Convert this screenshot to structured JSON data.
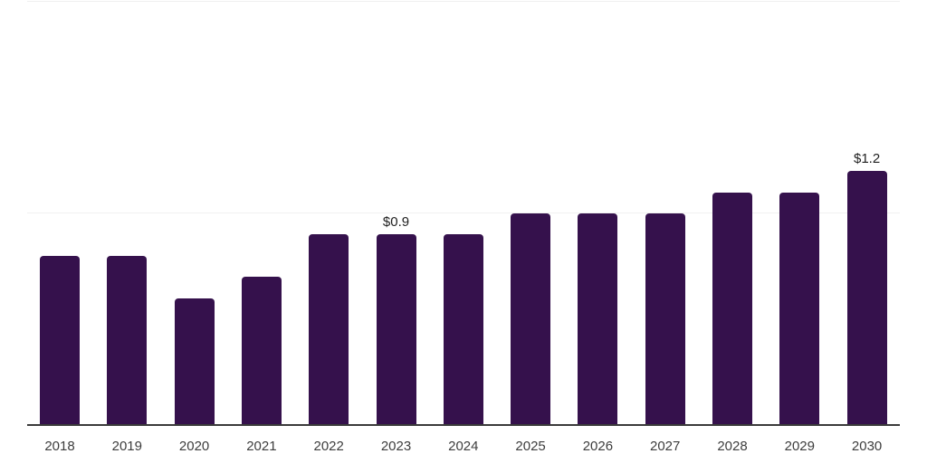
{
  "chart_data": {
    "type": "bar",
    "categories": [
      "2018",
      "2019",
      "2020",
      "2021",
      "2022",
      "2023",
      "2024",
      "2025",
      "2026",
      "2027",
      "2028",
      "2029",
      "2030"
    ],
    "values": [
      0.8,
      0.8,
      0.6,
      0.7,
      0.9,
      0.9,
      0.9,
      1.0,
      1.0,
      1.0,
      1.1,
      1.1,
      1.2
    ],
    "annotations": [
      {
        "category": "2023",
        "text": "$0.9"
      },
      {
        "category": "2030",
        "text": "$1.2"
      }
    ],
    "title": "",
    "xlabel": "",
    "ylabel": "",
    "ylim": [
      0,
      2.0
    ],
    "gridline_values": [
      1.0,
      2.0
    ],
    "grid": "horizontal",
    "legend": null,
    "colors": {
      "bar": "#35114C",
      "axis": "#3a3a3a",
      "gridline": "#f0f0f0",
      "tick_label": "#3d3d3d",
      "data_label": "#1f1f1f",
      "background": "#ffffff"
    }
  }
}
